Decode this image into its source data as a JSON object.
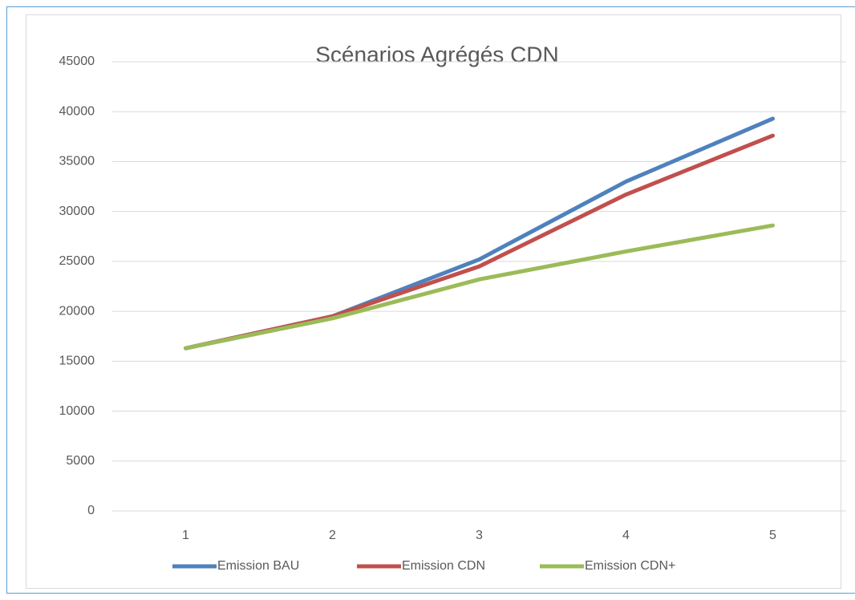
{
  "chart_data": {
    "type": "line",
    "title": "Scénarios Agrégés CDN",
    "categories": [
      "1",
      "2",
      "3",
      "4",
      "5"
    ],
    "series": [
      {
        "name": "Emission BAU",
        "color": "#4f81bd",
        "values": [
          16300,
          19500,
          25200,
          33000,
          39300
        ]
      },
      {
        "name": "Emission CDN",
        "color": "#c0504d",
        "values": [
          16300,
          19500,
          24500,
          31700,
          37600
        ]
      },
      {
        "name": "Emission CDN+",
        "color": "#9bbb59",
        "values": [
          16300,
          19300,
          23200,
          26000,
          28600
        ]
      }
    ],
    "ylim": [
      0,
      45000
    ],
    "yticks": [
      0,
      5000,
      10000,
      15000,
      20000,
      25000,
      30000,
      35000,
      40000,
      45000
    ],
    "grid": true,
    "legend": "bottom"
  }
}
